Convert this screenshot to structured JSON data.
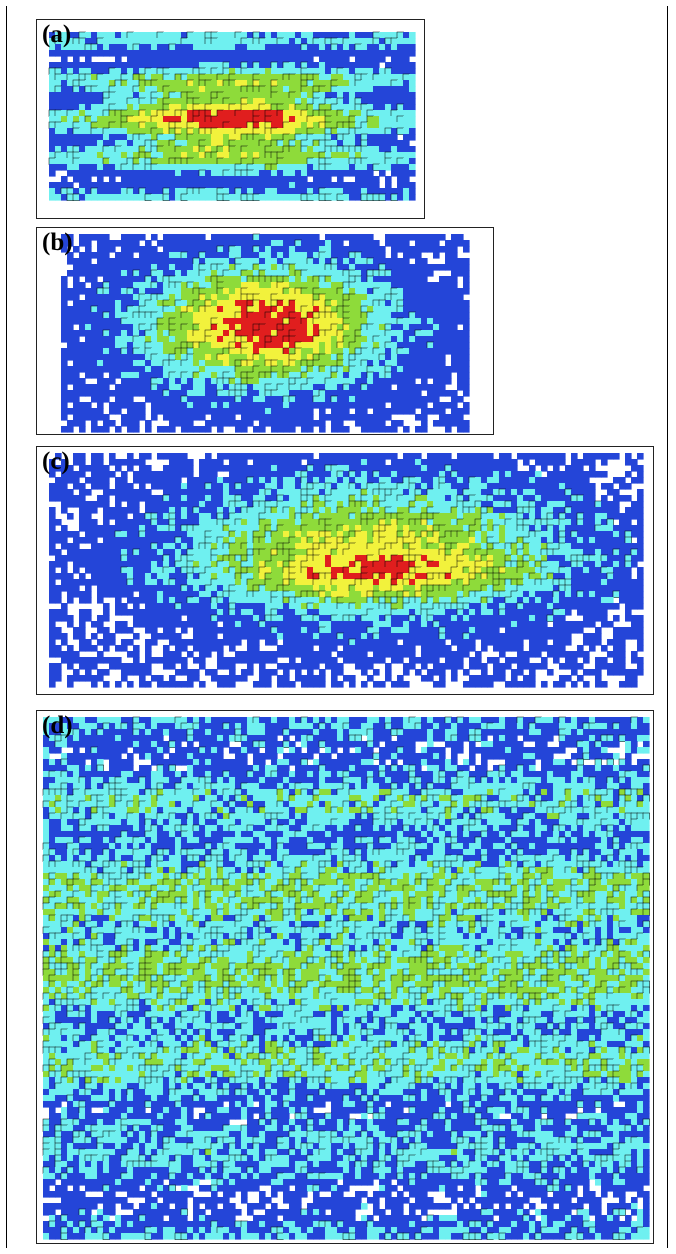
{
  "panels": [
    {
      "label": "(a)"
    },
    {
      "label": "(b)"
    },
    {
      "label": "(c)"
    },
    {
      "label": "(d)"
    }
  ],
  "colors": {
    "level0": "#ffffff",
    "level1": "#2445d8",
    "level2": "#6ff0f0",
    "level3": "#8edb3a",
    "level4": "#f2f23c",
    "level5": "#e01e1e",
    "contour": "#000000"
  },
  "color_scale": [
    "white",
    "blue",
    "cyan",
    "green",
    "yellow",
    "red"
  ]
}
